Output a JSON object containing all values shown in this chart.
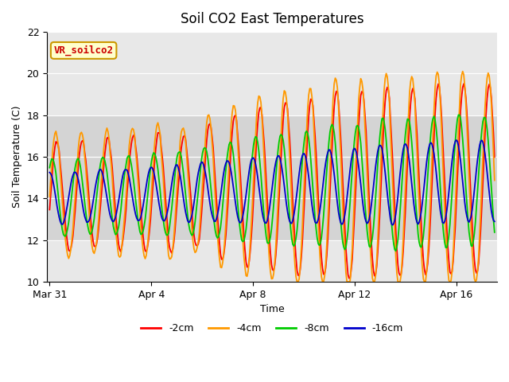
{
  "title": "Soil CO2 East Temperatures",
  "xlabel": "Time",
  "ylabel": "Soil Temperature (C)",
  "ylim": [
    10,
    22
  ],
  "yticks": [
    10,
    12,
    14,
    16,
    18,
    20,
    22
  ],
  "x_tick_labels": [
    "Mar 31",
    "Apr 4",
    "Apr 8",
    "Apr 12",
    "Apr 16"
  ],
  "x_tick_positions": [
    0,
    4,
    8,
    12,
    16
  ],
  "annotation_text": "VR_soilco2",
  "annotation_color": "#cc0000",
  "annotation_bg": "#ffffcc",
  "annotation_border": "#cc9900",
  "lines": [
    {
      "label": "-2cm",
      "color": "#ff0000",
      "lw": 1.3
    },
    {
      "label": "-4cm",
      "color": "#ff9900",
      "lw": 1.3
    },
    {
      "label": "-8cm",
      "color": "#00cc00",
      "lw": 1.3
    },
    {
      "label": "-16cm",
      "color": "#0000cc",
      "lw": 1.3
    }
  ],
  "plot_bg": "#e8e8e8",
  "band_color": "#d4d4d4",
  "band_low": 12,
  "band_high": 18,
  "title_fontsize": 12,
  "axis_fontsize": 9,
  "tick_fontsize": 9,
  "legend_fontsize": 9
}
